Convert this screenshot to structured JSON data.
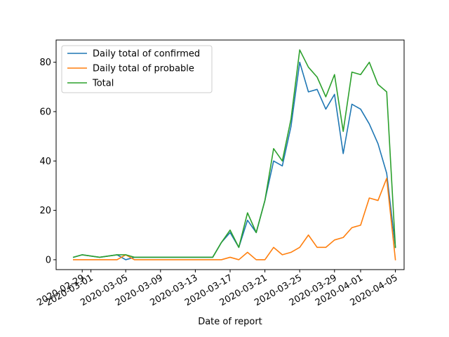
{
  "chart_data": {
    "type": "line",
    "title": "",
    "xlabel": "Date of report",
    "ylabel": "",
    "x": [
      "2020-02-28",
      "2020-02-29",
      "2020-03-01",
      "2020-03-02",
      "2020-03-03",
      "2020-03-04",
      "2020-03-05",
      "2020-03-06",
      "2020-03-07",
      "2020-03-08",
      "2020-03-09",
      "2020-03-10",
      "2020-03-11",
      "2020-03-12",
      "2020-03-13",
      "2020-03-14",
      "2020-03-15",
      "2020-03-16",
      "2020-03-17",
      "2020-03-18",
      "2020-03-19",
      "2020-03-20",
      "2020-03-21",
      "2020-03-22",
      "2020-03-23",
      "2020-03-24",
      "2020-03-25",
      "2020-03-26",
      "2020-03-27",
      "2020-03-28",
      "2020-03-29",
      "2020-03-30",
      "2020-03-31",
      "2020-04-01",
      "2020-04-02",
      "2020-04-03",
      "2020-04-04",
      "2020-04-05"
    ],
    "xlim": [
      "2020-02-26",
      "2020-04-06"
    ],
    "xticks": [
      "2020-02-29",
      "2020-03-01",
      "2020-03-05",
      "2020-03-09",
      "2020-03-13",
      "2020-03-17",
      "2020-03-21",
      "2020-03-25",
      "2020-03-29",
      "2020-04-01",
      "2020-04-05"
    ],
    "ylim": [
      -4,
      89
    ],
    "yticks": [
      0,
      20,
      40,
      60,
      80
    ],
    "legend_position": "top-left",
    "series": [
      {
        "name": "Daily total of confirmed",
        "color": "#1f77b4",
        "values": [
          1,
          2,
          1.5,
          1,
          1.5,
          2,
          0,
          1,
          1,
          1,
          1,
          1,
          1,
          1,
          1,
          1,
          1,
          7,
          11,
          5,
          16,
          11,
          24,
          40,
          38,
          54,
          80,
          68,
          69,
          61,
          67,
          43,
          63,
          61,
          55,
          47,
          35,
          5
        ]
      },
      {
        "name": "Daily total of probable",
        "color": "#ff7f0e",
        "values": [
          0,
          0,
          0,
          0,
          0,
          0,
          2,
          0,
          0,
          0,
          0,
          0,
          0,
          0,
          0,
          0,
          0,
          0,
          1,
          0,
          3,
          0,
          0,
          5,
          2,
          3,
          5,
          10,
          5,
          5,
          8,
          9,
          13,
          14,
          25,
          24,
          33,
          0
        ]
      },
      {
        "name": "Total",
        "color": "#2ca02c",
        "values": [
          1,
          2,
          1.5,
          1,
          1.5,
          2,
          2,
          1,
          1,
          1,
          1,
          1,
          1,
          1,
          1,
          1,
          1,
          7,
          12,
          5,
          19,
          11,
          24,
          45,
          40,
          57,
          85,
          78,
          74,
          66,
          75,
          52,
          76,
          75,
          80,
          71,
          68,
          5
        ]
      }
    ]
  }
}
